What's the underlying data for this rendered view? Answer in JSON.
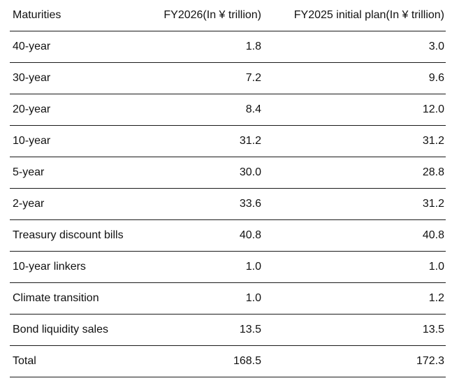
{
  "table": {
    "headers": [
      "Maturities",
      "FY2026(In ¥ trillion)",
      "FY2025 initial plan(In ¥ trillion)"
    ],
    "rows": [
      [
        "40-year",
        "1.8",
        "3.0"
      ],
      [
        "30-year",
        "7.2",
        "9.6"
      ],
      [
        "20-year",
        "8.4",
        "12.0"
      ],
      [
        "10-year",
        "31.2",
        "31.2"
      ],
      [
        "5-year",
        "30.0",
        "28.8"
      ],
      [
        "2-year",
        "33.6",
        "31.2"
      ],
      [
        "Treasury discount bills",
        "40.8",
        "40.8"
      ],
      [
        "10-year linkers",
        "1.0",
        "1.0"
      ],
      [
        "Climate transition",
        "1.0",
        "1.2"
      ],
      [
        "Bond liquidity sales",
        "13.5",
        "13.5"
      ],
      [
        "Total",
        "168.5",
        "172.3"
      ]
    ]
  }
}
